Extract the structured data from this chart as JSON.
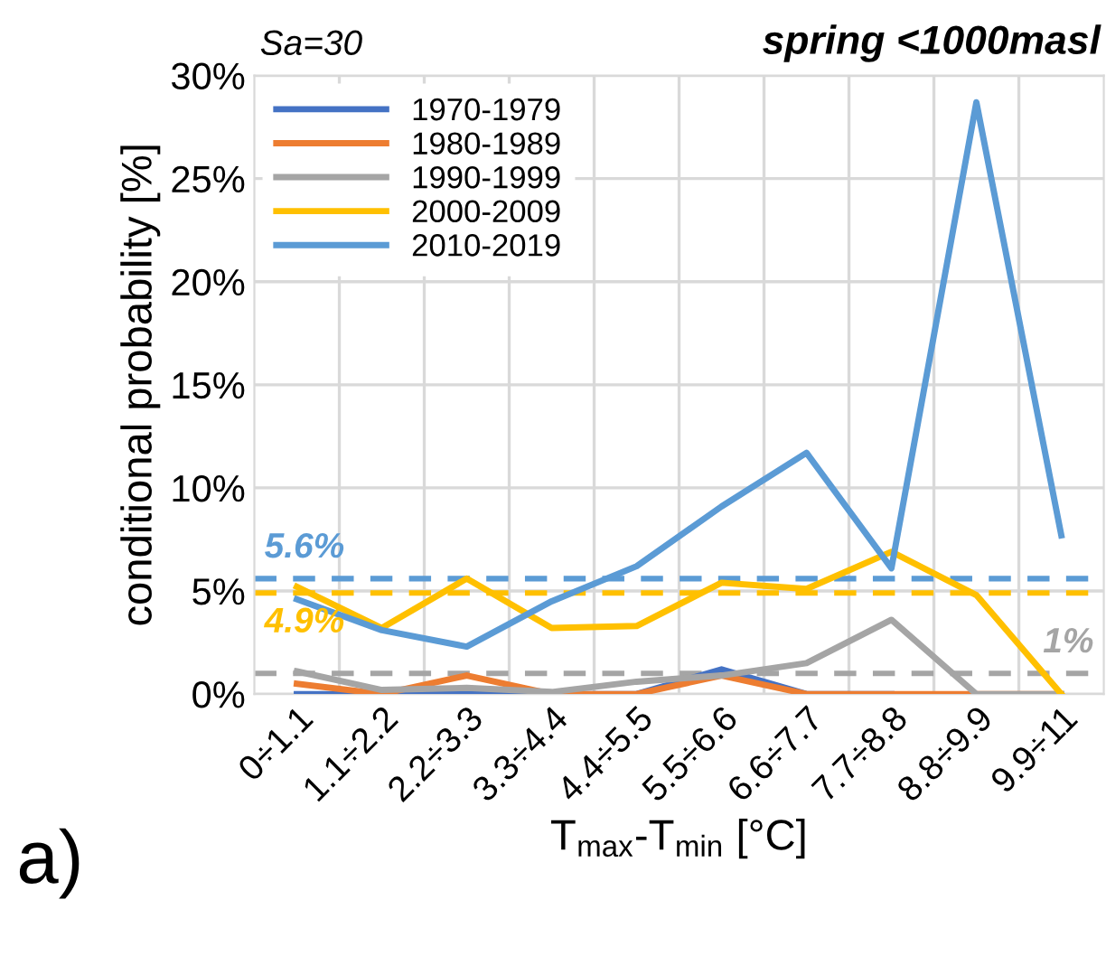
{
  "chart_data": {
    "type": "line",
    "xlabel": "T$_{max}$-T$_{min}$ [°C]",
    "ylabel": "conditional probability [%]",
    "annotations": [
      "Sa=30",
      "spring <1000masl",
      "a)"
    ],
    "categories": [
      "0÷1.1",
      "1.1÷2.2",
      "2.2÷3.3",
      "3.3÷4.4",
      "4.4÷5.5",
      "5.5÷6.6",
      "6.6÷7.7",
      "7.7÷8.8",
      "8.8÷9.9",
      "9.9÷11"
    ],
    "series": [
      {
        "name": "1970-1979",
        "color": "#4472c4",
        "values": [
          0,
          0,
          0,
          0,
          0,
          1.2,
          0,
          0,
          null,
          null
        ]
      },
      {
        "name": "1980-1989",
        "color": "#ed7d31",
        "values": [
          0.5,
          0,
          0.9,
          0,
          0,
          0.9,
          0,
          0,
          0,
          0
        ]
      },
      {
        "name": "1990-1999",
        "color": "#a5a5a5",
        "values": [
          1.1,
          0.2,
          0.3,
          0.1,
          0.6,
          0.9,
          1.5,
          3.6,
          0,
          0
        ]
      },
      {
        "name": "2000-2009",
        "color": "#ffc000",
        "values": [
          5.2,
          3.2,
          5.6,
          3.2,
          3.3,
          5.4,
          5.1,
          6.9,
          4.8,
          0
        ]
      },
      {
        "name": "2010-2019",
        "color": "#5b9bd5",
        "values": [
          4.6,
          3.1,
          2.3,
          4.5,
          6.2,
          9.1,
          11.7,
          6.1,
          28.7,
          7.7
        ]
      }
    ],
    "ref_lines": [
      {
        "axis": "y",
        "value": 5.6,
        "label": "5.6%",
        "color": "#5b9bd5",
        "line_style": "dashed"
      },
      {
        "axis": "y",
        "value": 4.9,
        "label": "4.9%",
        "color": "#ffc000",
        "line_style": "dashed"
      },
      {
        "axis": "y",
        "value": 1,
        "label": "1%",
        "color": "#a5a5a5",
        "line_style": "dashed"
      }
    ],
    "ylim": [
      0,
      30
    ],
    "yticks": [
      {
        "value": 0,
        "label": "0%"
      },
      {
        "value": 5,
        "label": "5%"
      },
      {
        "value": 10,
        "label": "10%"
      },
      {
        "value": 15,
        "label": "15%"
      },
      {
        "value": 20,
        "label": "20%"
      },
      {
        "value": 25,
        "label": "25%"
      },
      {
        "value": 30,
        "label": "30%"
      }
    ],
    "grid": true,
    "legend": "top left",
    "marker": "none",
    "line_style": "solid"
  }
}
